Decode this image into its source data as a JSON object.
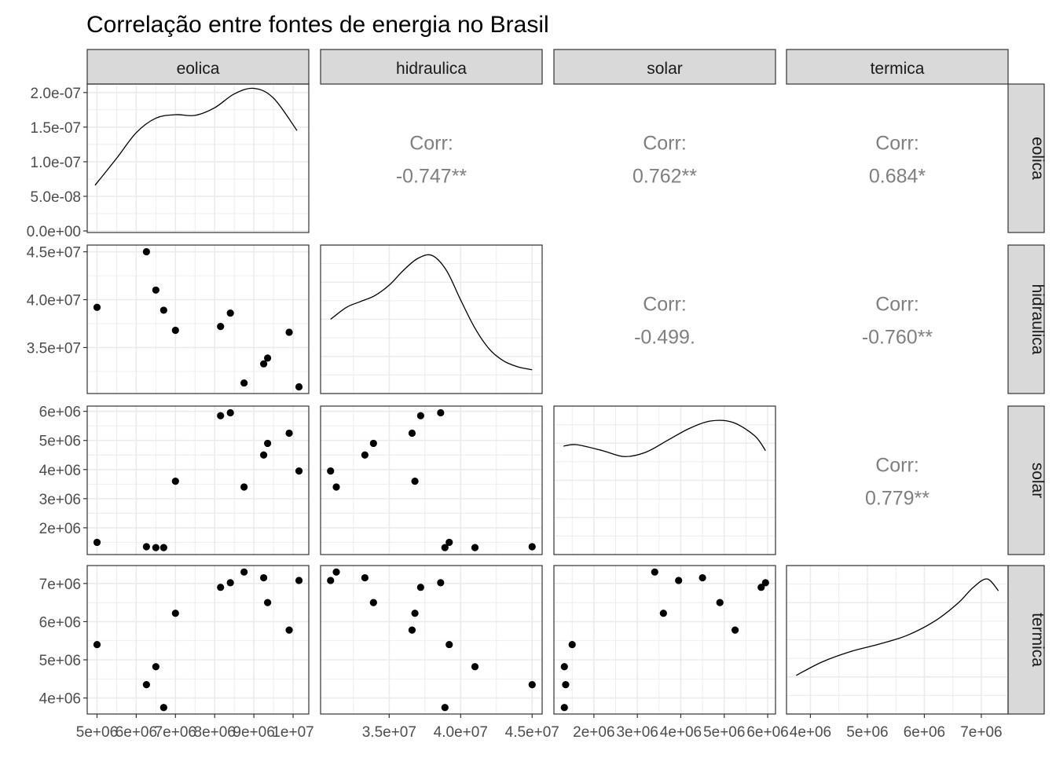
{
  "chart_data": {
    "type": "scatter",
    "title": "Correlação entre fontes de energia no Brasil",
    "variables": [
      "eolica",
      "hidraulica",
      "solar",
      "termica"
    ],
    "corr_label": "Corr:",
    "correlations": [
      {
        "row": "eolica",
        "col": "hidraulica",
        "value": "-0.747**"
      },
      {
        "row": "eolica",
        "col": "solar",
        "value": "0.762**"
      },
      {
        "row": "eolica",
        "col": "termica",
        "value": "0.684*"
      },
      {
        "row": "hidraulica",
        "col": "solar",
        "value": "-0.499."
      },
      {
        "row": "hidraulica",
        "col": "termica",
        "value": "-0.760**"
      },
      {
        "row": "solar",
        "col": "termica",
        "value": "0.779**"
      }
    ],
    "points": {
      "eolica": [
        5000000.0,
        6260000.0,
        6500000.0,
        6700000.0,
        7000000.0,
        8150000.0,
        8400000.0,
        8750000.0,
        9250000.0,
        9350000.0,
        9900000.0,
        10150000.0
      ],
      "hidraulica": [
        39200000.0,
        45000000.0,
        41000000.0,
        38900000.0,
        36800000.0,
        37200000.0,
        38600000.0,
        31300000.0,
        33300000.0,
        33900000.0,
        36600000.0,
        30900000.0
      ],
      "solar": [
        1500000.0,
        1350000.0,
        1320000.0,
        1320000.0,
        3600000.0,
        5850000.0,
        5950000.0,
        3400000.0,
        4500000.0,
        4900000.0,
        5250000.0,
        3950000.0
      ],
      "termica": [
        5400000.0,
        4350000.0,
        4820000.0,
        3750000.0,
        6220000.0,
        6900000.0,
        7020000.0,
        7300000.0,
        7150000.0,
        6500000.0,
        5780000.0,
        7080000.0
      ]
    },
    "densities": {
      "eolica": {
        "x": [
          4950000.0,
          5500000.0,
          6000000.0,
          6500000.0,
          7000000.0,
          7500000.0,
          8000000.0,
          8500000.0,
          9000000.0,
          9500000.0,
          10100000.0
        ],
        "y": [
          6.6e-08,
          1.05e-07,
          1.42e-07,
          1.63e-07,
          1.68e-07,
          1.67e-07,
          1.78e-07,
          1.98e-07,
          2.06e-07,
          1.92e-07,
          1.45e-07
        ],
        "ylim": [
          0,
          2.1e-07
        ],
        "yticks": [
          "0.0e+00",
          "5.0e-08",
          "1.0e-07",
          "1.5e-07",
          "2.0e-07"
        ]
      },
      "hidraulica": {
        "x": [
          30900000.0,
          32000000.0,
          33000000.0,
          34000000.0,
          35000000.0,
          36000000.0,
          37000000.0,
          38000000.0,
          39000000.0,
          40000000.0,
          41000000.0,
          42000000.0,
          43000000.0,
          44000000.0,
          45000000.0
        ]
      },
      "solar": {
        "x": [
          1300000.0,
          1600000.0,
          2200000.0,
          2700000.0,
          3200000.0,
          3700000.0,
          4200000.0,
          4700000.0,
          5200000.0,
          5700000.0,
          5950000.0
        ]
      },
      "termica": {
        "x": [
          3750000.0,
          4200000.0,
          4700000.0,
          5200000.0,
          5700000.0,
          6200000.0,
          6600000.0,
          6850000.0,
          7100000.0,
          7300000.0
        ]
      }
    },
    "axes": {
      "eolica": {
        "range": [
          4750000.0,
          10400000.0
        ],
        "ticks": [
          5000000.0,
          6000000.0,
          7000000.0,
          8000000.0,
          9000000.0,
          10000000.0
        ],
        "labels": [
          "5e+06",
          "6e+06",
          "7e+06",
          "8e+06",
          "9e+06",
          "1e+07"
        ]
      },
      "hidraulica": {
        "range": [
          30200000.0,
          45700000.0
        ],
        "ticks": [
          35000000.0,
          40000000.0,
          45000000.0
        ],
        "labels": [
          "3.5e+07",
          "4.0e+07",
          "4.5e+07"
        ]
      },
      "solar": {
        "range": [
          1080000.0,
          6180000.0
        ],
        "ticks": [
          2000000.0,
          3000000.0,
          4000000.0,
          5000000.0,
          6000000.0
        ],
        "labels": [
          "2e+06",
          "3e+06",
          "4e+06",
          "5e+06",
          "6e+06"
        ]
      },
      "termica": {
        "range": [
          3580000.0,
          7470000.0
        ],
        "ticks": [
          4000000.0,
          5000000.0,
          6000000.0,
          7000000.0
        ],
        "labels": [
          "4e+06",
          "5e+06",
          "6e+06",
          "7e+06"
        ]
      }
    },
    "bottom_axis_labels": [
      [
        "5e+06",
        "6e+06",
        "7e+06",
        "8e+06",
        "9e+06",
        "1e+07"
      ],
      [
        "3.5e+07",
        "4.0e+07",
        "4.5e+07"
      ],
      [
        "2e+06",
        "3e+06",
        "4e+06",
        "5e+06",
        "6e+06"
      ],
      [
        "4e+06",
        "5e+06",
        "6e+06",
        "7e+06"
      ]
    ],
    "left_axis_labels": [
      [
        "0.0e+00",
        "5.0e-08",
        "1.0e-07",
        "1.5e-07",
        "2.0e-07"
      ],
      [
        "3.5e+07",
        "4.0e+07",
        "4.5e+07"
      ],
      [
        "2e+06",
        "3e+06",
        "4e+06",
        "5e+06",
        "6e+06"
      ],
      [
        "4e+06",
        "5e+06",
        "6e+06",
        "7e+06"
      ]
    ],
    "grid": true
  }
}
